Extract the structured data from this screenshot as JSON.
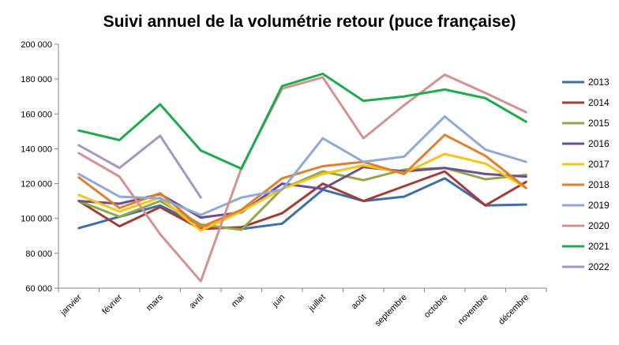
{
  "chart_data": {
    "type": "line",
    "title": "Suivi annuel de la volumétrie retour (puce française)",
    "xlabel": "",
    "ylabel": "",
    "categories": [
      "janvier",
      "février",
      "mars",
      "avril",
      "mai",
      "juin",
      "juillet",
      "août",
      "septembre",
      "octobre",
      "novembre",
      "décembre"
    ],
    "ylim": [
      60000,
      200000
    ],
    "yticks": [
      60000,
      80000,
      100000,
      120000,
      140000,
      160000,
      180000,
      200000
    ],
    "ytick_labels": [
      "60 000",
      "80 000",
      "100 000",
      "120 000",
      "140 000",
      "160 000",
      "180 000",
      "200 000"
    ],
    "grid": false,
    "legend_position": "right",
    "series": [
      {
        "name": "2013",
        "color": "#3f6fa8",
        "values": [
          94500,
          101000,
          107500,
          96000,
          94000,
          97000,
          116500,
          110000,
          112500,
          123000,
          107500,
          108000
        ]
      },
      {
        "name": "2014",
        "color": "#a33c3a",
        "values": [
          110000,
          95500,
          106500,
          94000,
          95000,
          103000,
          120000,
          110000,
          118500,
          127000,
          107500,
          121000
        ]
      },
      {
        "name": "2015",
        "color": "#8ea948",
        "values": [
          110000,
          101000,
          110000,
          96500,
          93500,
          117000,
          127000,
          122000,
          128000,
          129000,
          122500,
          125000
        ]
      },
      {
        "name": "2016",
        "color": "#6c4f90",
        "values": [
          110000,
          108500,
          114000,
          100500,
          103500,
          120000,
          117000,
          129500,
          127000,
          129000,
          125500,
          124000
        ]
      },
      {
        "name": "2017",
        "color": "#f9c318",
        "values": [
          113500,
          104000,
          112000,
          93000,
          104000,
          117000,
          125500,
          130500,
          126000,
          137000,
          131500,
          117500
        ]
      },
      {
        "name": "2018",
        "color": "#e07f30",
        "values": [
          123500,
          106000,
          114500,
          95000,
          105000,
          123000,
          130000,
          132500,
          125500,
          148000,
          136000,
          117500
        ]
      },
      {
        "name": "2019",
        "color": "#8faad4",
        "values": [
          125500,
          112500,
          111500,
          102000,
          112000,
          116500,
          146000,
          132500,
          135500,
          158500,
          139500,
          132500
        ]
      },
      {
        "name": "2020",
        "color": "#d39393",
        "values": [
          137500,
          124000,
          91000,
          64000,
          129000,
          174500,
          181000,
          146000,
          165000,
          182500,
          172000,
          161000
        ]
      },
      {
        "name": "2021",
        "color": "#1faa4d",
        "values": [
          150500,
          145000,
          165500,
          139000,
          128500,
          176000,
          183000,
          167500,
          170000,
          174000,
          169000,
          155500
        ]
      },
      {
        "name": "2022",
        "color": "#a597bf",
        "values": [
          142000,
          129000,
          147500,
          112000,
          null,
          null,
          null,
          null,
          null,
          null,
          null,
          null
        ]
      }
    ]
  }
}
